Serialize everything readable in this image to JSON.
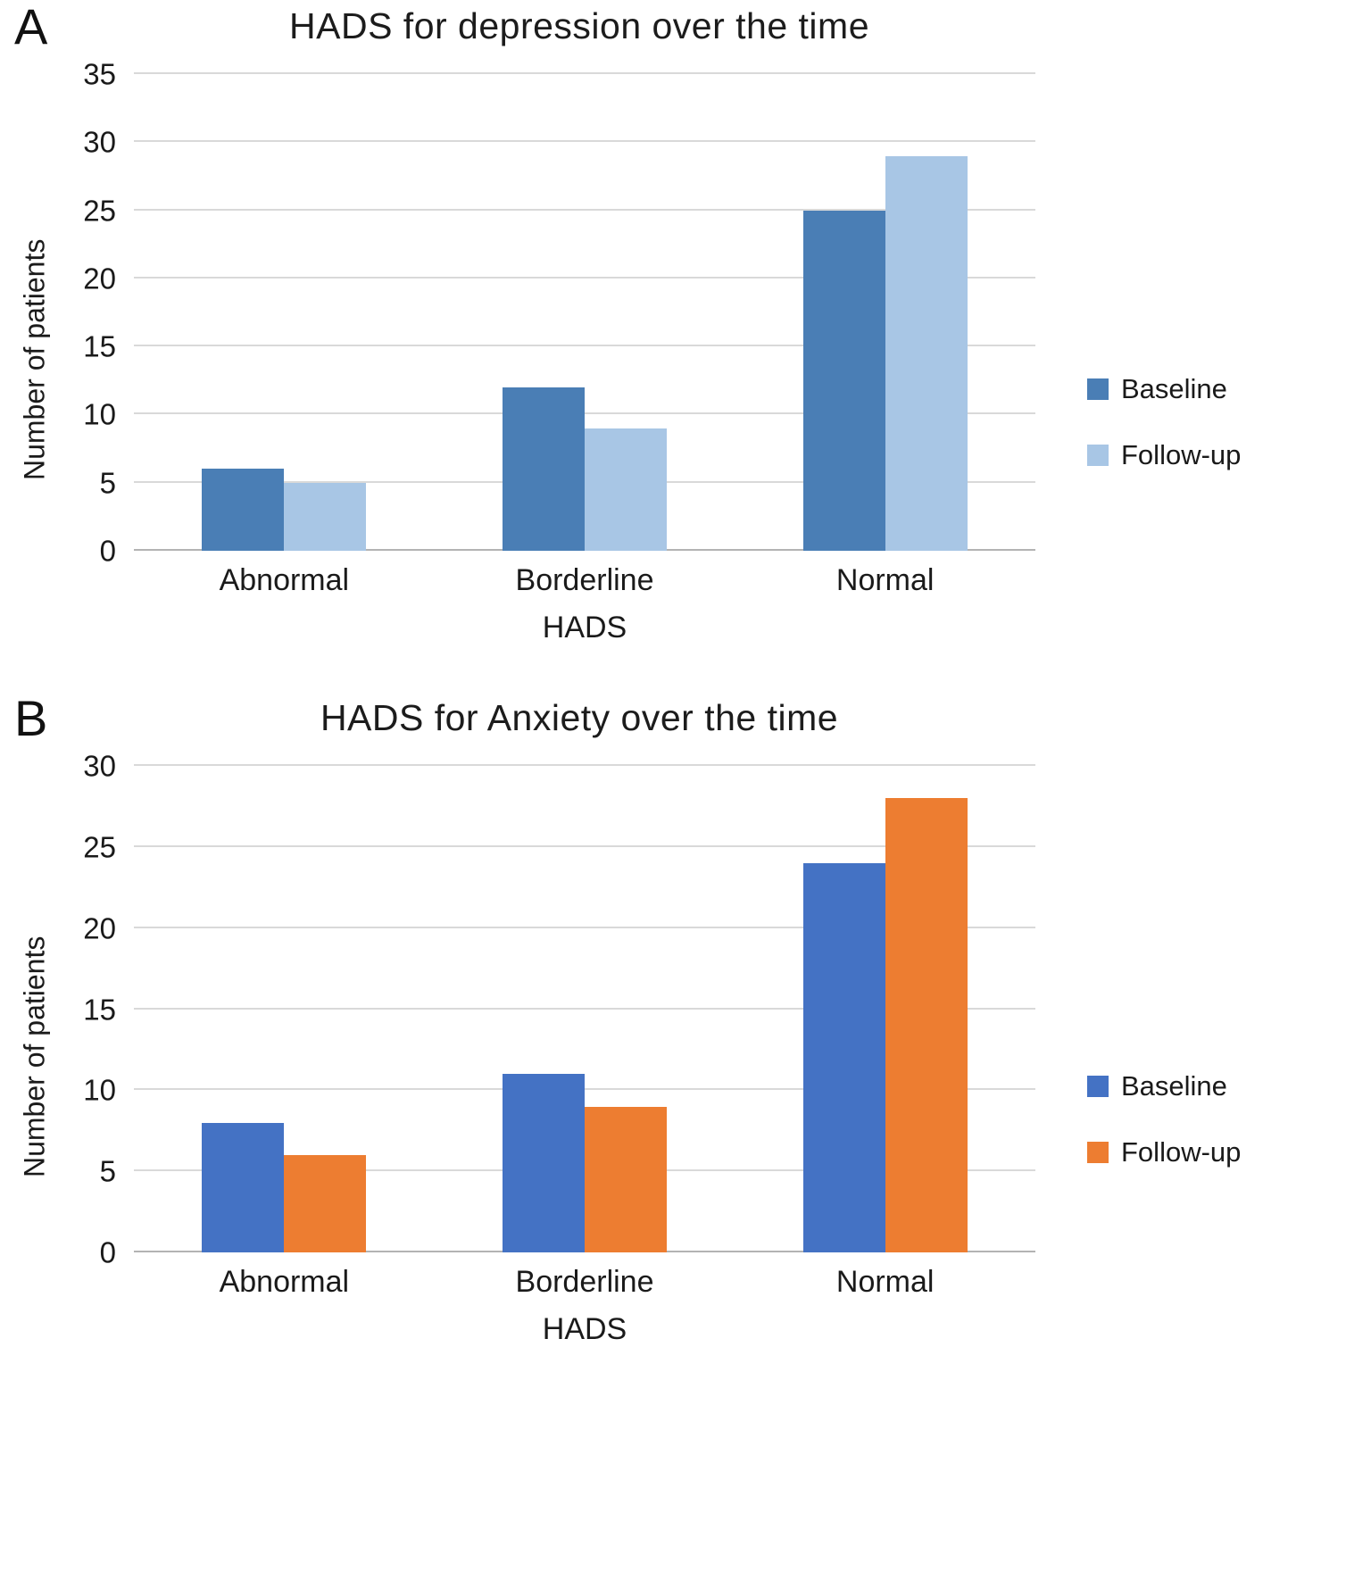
{
  "figure": {
    "background": "#ffffff"
  },
  "chart_data": [
    {
      "panel": "A",
      "type": "bar",
      "title": "HADS for depression over the time",
      "xlabel": "HADS",
      "ylabel": "Number of patients",
      "categories": [
        "Abnormal",
        "Borderline",
        "Normal"
      ],
      "series": [
        {
          "name": "Baseline",
          "color": "#4a7eb5",
          "values": [
            6,
            12,
            25
          ]
        },
        {
          "name": "Follow-up",
          "color": "#a8c6e5",
          "values": [
            5,
            9,
            29
          ]
        }
      ],
      "ylim": [
        0,
        35
      ],
      "yticks": [
        0,
        5,
        10,
        15,
        20,
        25,
        30,
        35
      ],
      "grid": true,
      "legend_position": "right",
      "gridline_color": "#d9d9d9"
    },
    {
      "panel": "B",
      "type": "bar",
      "title": "HADS for Anxiety over the time",
      "xlabel": "HADS",
      "ylabel": "Number of patients",
      "categories": [
        "Abnormal",
        "Borderline",
        "Normal"
      ],
      "series": [
        {
          "name": "Baseline",
          "color": "#4472c4",
          "values": [
            8,
            11,
            24
          ]
        },
        {
          "name": "Follow-up",
          "color": "#ed7d31",
          "values": [
            6,
            9,
            28
          ]
        }
      ],
      "ylim": [
        0,
        30
      ],
      "yticks": [
        0,
        5,
        10,
        15,
        20,
        25,
        30
      ],
      "grid": true,
      "legend_position": "right",
      "gridline_color": "#d9d9d9"
    }
  ]
}
